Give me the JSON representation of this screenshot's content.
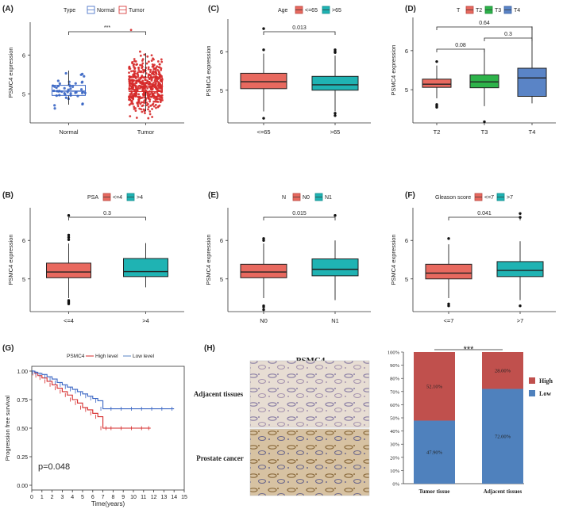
{
  "colors": {
    "red": "#e8695f",
    "teal": "#1fb3b3",
    "green": "#2db34a",
    "blue": "#5a84c6",
    "normalBlue": "#3a66c4",
    "tumorRed": "#d62a2a",
    "barRed": "#c0504d",
    "barBlue": "#4f81bd"
  },
  "chart_data": [
    {
      "type": "box+jitter",
      "panel": "(A)",
      "legend_title": "Type",
      "legend": [
        "Normal",
        "Tumor"
      ],
      "categories": [
        "Normal",
        "Tumor"
      ],
      "ylabel": "PSMC4 expression",
      "yticks": [
        5,
        6
      ],
      "boxes": [
        {
          "q1": 4.96,
          "med": 5.07,
          "q3": 5.22,
          "wl": 4.72,
          "wh": 5.6
        },
        {
          "q1": 5.06,
          "med": 5.2,
          "q3": 5.42,
          "wl": 4.55,
          "wh": 6.05
        }
      ],
      "sig": "***"
    },
    {
      "type": "box",
      "panel": "(B)",
      "legend_title": "PSA",
      "legend": [
        "<=4",
        ">4"
      ],
      "categories": [
        "<=4",
        ">4"
      ],
      "ylabel": "PSMC4  expression",
      "yticks": [
        5,
        6
      ],
      "boxes": [
        {
          "q1": 5.03,
          "med": 5.18,
          "q3": 5.41,
          "wl": 4.5,
          "wh": 5.92
        },
        {
          "q1": 5.06,
          "med": 5.19,
          "q3": 5.53,
          "wl": 4.78,
          "wh": 5.93
        }
      ],
      "outliers": [
        [
          4.35,
          4.38,
          4.41,
          4.44,
          6.02,
          6.08,
          6.14,
          6.65
        ],
        []
      ],
      "sig": "0.3"
    },
    {
      "type": "box",
      "panel": "(C)",
      "legend_title": "Age",
      "legend": [
        "<=65",
        ">65"
      ],
      "categories": [
        "<=65",
        ">65"
      ],
      "ylabel": "PSMC4  expression",
      "yticks": [
        5,
        6
      ],
      "boxes": [
        {
          "q1": 5.04,
          "med": 5.22,
          "q3": 5.44,
          "wl": 4.45,
          "wh": 5.95
        },
        {
          "q1": 5.0,
          "med": 5.14,
          "q3": 5.36,
          "wl": 4.45,
          "wh": 5.9
        }
      ],
      "outliers": [
        [
          4.27,
          6.05,
          6.6
        ],
        [
          4.34,
          4.4,
          5.98,
          6.0,
          6.05
        ]
      ],
      "sig": "0.013"
    },
    {
      "type": "box",
      "panel": "(D)",
      "legend_title": "T",
      "legend": [
        "T2",
        "T3",
        "T4"
      ],
      "categories": [
        "T2",
        "T3",
        "T4"
      ],
      "ylabel": "PSMC4  expression",
      "yticks": [
        5,
        6
      ],
      "boxes": [
        {
          "q1": 5.06,
          "med": 5.14,
          "q3": 5.27,
          "wl": 4.78,
          "wh": 5.62
        },
        {
          "q1": 5.05,
          "med": 5.2,
          "q3": 5.38,
          "wl": 4.58,
          "wh": 6.05
        },
        {
          "q1": 4.83,
          "med": 5.3,
          "q3": 5.55,
          "wl": 4.65,
          "wh": 6.62
        }
      ],
      "outliers": [
        [
          4.62,
          4.58,
          4.55,
          5.72
        ],
        [
          4.18
        ],
        []
      ],
      "sigs": [
        {
          "label": "0.08",
          "from": 0,
          "to": 1
        },
        {
          "label": "0.3",
          "from": 1,
          "to": 2
        },
        {
          "label": "0.64",
          "from": 0,
          "to": 2
        }
      ]
    },
    {
      "type": "box",
      "panel": "(E)",
      "legend_title": "N",
      "legend": [
        "N0",
        "N1"
      ],
      "categories": [
        "N0",
        "N1"
      ],
      "ylabel": "PSMC4  expression",
      "yticks": [
        5,
        6
      ],
      "boxes": [
        {
          "q1": 5.03,
          "med": 5.18,
          "q3": 5.38,
          "wl": 4.5,
          "wh": 5.92
        },
        {
          "q1": 5.08,
          "med": 5.25,
          "q3": 5.52,
          "wl": 4.45,
          "wh": 6.0
        }
      ],
      "outliers": [
        [
          4.3,
          4.2,
          4.27,
          6.0,
          6.05
        ],
        [
          6.65
        ]
      ],
      "sig": "0.015"
    },
    {
      "type": "box",
      "panel": "(F)",
      "legend_title": "Gleason score",
      "legend": [
        "<=7",
        ">7"
      ],
      "categories": [
        "<=7",
        ">7"
      ],
      "ylabel": "PSMC4  expression",
      "yticks": [
        5,
        6
      ],
      "boxes": [
        {
          "q1": 5.0,
          "med": 5.15,
          "q3": 5.38,
          "wl": 4.5,
          "wh": 5.9
        },
        {
          "q1": 5.06,
          "med": 5.22,
          "q3": 5.45,
          "wl": 4.45,
          "wh": 5.98
        }
      ],
      "outliers": [
        [
          4.3,
          4.35,
          6.05
        ],
        [
          4.3,
          6.6,
          6.7
        ]
      ],
      "sig": "0.041"
    },
    {
      "type": "line",
      "panel": "(G)",
      "legend_title": "PSMC4",
      "legend": [
        "High level",
        "Low level"
      ],
      "xlabel": "Time(years)",
      "ylabel": "Progression free survival",
      "xticks": [
        0,
        1,
        2,
        3,
        4,
        5,
        6,
        7,
        8,
        9,
        10,
        11,
        12,
        13,
        14,
        15
      ],
      "yticks": [
        "0.00",
        "0.25",
        "0.50",
        "0.75",
        "1.00"
      ],
      "series": [
        {
          "name": "High level",
          "x": [
            0,
            0.3,
            0.6,
            1,
            1.5,
            2,
            2.5,
            3,
            3.5,
            4,
            4.5,
            5,
            5.5,
            6,
            6.5,
            7,
            7.5,
            8,
            9,
            10,
            11,
            11.7
          ],
          "y": [
            1,
            0.98,
            0.96,
            0.94,
            0.91,
            0.88,
            0.85,
            0.82,
            0.79,
            0.75,
            0.72,
            0.68,
            0.66,
            0.63,
            0.6,
            0.5,
            0.5,
            0.5,
            0.5,
            0.5,
            0.5,
            0.5
          ]
        },
        {
          "name": "Low level",
          "x": [
            0,
            0.3,
            0.6,
            1,
            1.5,
            2,
            2.5,
            3,
            3.5,
            4,
            4.5,
            5,
            5.5,
            6,
            6.5,
            7,
            8,
            9,
            10,
            11,
            12,
            13,
            14
          ],
          "y": [
            1,
            0.99,
            0.98,
            0.97,
            0.95,
            0.93,
            0.9,
            0.88,
            0.86,
            0.84,
            0.82,
            0.8,
            0.78,
            0.76,
            0.74,
            0.67,
            0.67,
            0.67,
            0.67,
            0.67,
            0.67,
            0.67,
            0.67
          ]
        }
      ],
      "pvalue": "p=0.048"
    },
    {
      "type": "bar",
      "panel": "(H)",
      "stacked": true,
      "categories": [
        "Tumor tissue",
        "Adjacent tissues"
      ],
      "series": [
        {
          "name": "Low",
          "values": [
            47.9,
            72.0
          ]
        },
        {
          "name": "High",
          "values": [
            52.1,
            28.0
          ]
        }
      ],
      "labels": {
        "low": [
          "47.90%",
          "72.00%"
        ],
        "high": [
          "52.10%",
          "28.00%"
        ]
      },
      "yticks": [
        "0%",
        "10%",
        "20%",
        "30%",
        "40%",
        "50%",
        "60%",
        "70%",
        "80%",
        "90%",
        "100%"
      ],
      "sig": "***",
      "ihc_title": "PSMC4",
      "row_labels": [
        "Adjacent tissues",
        "Prostate cancer"
      ]
    }
  ]
}
